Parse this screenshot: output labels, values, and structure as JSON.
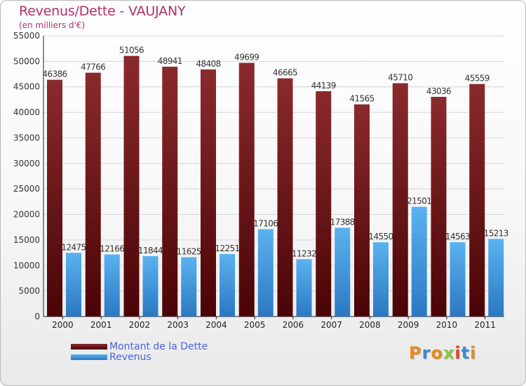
{
  "title": "Revenus/Dette - VAUJANY",
  "subtitle": "(en milliers d'€)",
  "logo": {
    "text": "Proxiti",
    "colors": [
      "#e68a1e",
      "#3a8ad6",
      "#e68a1e",
      "#8ac43b",
      "#e63c2b",
      "#3a8ad6",
      "#e68a1e"
    ]
  },
  "legend": [
    {
      "label": "Montant de la Dette",
      "color": "#6b0f12"
    },
    {
      "label": "Revenus",
      "color": "#3f8fd6"
    }
  ],
  "chart_data": {
    "type": "bar",
    "title": "Revenus/Dette - VAUJANY",
    "subtitle": "(en milliers d'€)",
    "categories": [
      "2000",
      "2001",
      "2002",
      "2003",
      "2004",
      "2005",
      "2006",
      "2007",
      "2008",
      "2009",
      "2010",
      "2011"
    ],
    "series": [
      {
        "name": "Montant de la Dette",
        "color": "#7a1a1d",
        "values": [
          46386,
          47766,
          51056,
          48941,
          48408,
          49699,
          46665,
          44139,
          41565,
          45710,
          43036,
          45559
        ]
      },
      {
        "name": "Revenus",
        "color": "#4aa3e8",
        "values": [
          12475,
          12166,
          11844,
          11625,
          12251,
          17106,
          11232,
          17388,
          14550,
          21501,
          14563,
          15213
        ]
      }
    ],
    "ylim": [
      0,
      55000
    ],
    "yticks": [
      0,
      5000,
      10000,
      15000,
      20000,
      25000,
      30000,
      35000,
      40000,
      45000,
      50000,
      55000
    ],
    "grid": true,
    "legend_position": "bottom-left"
  }
}
